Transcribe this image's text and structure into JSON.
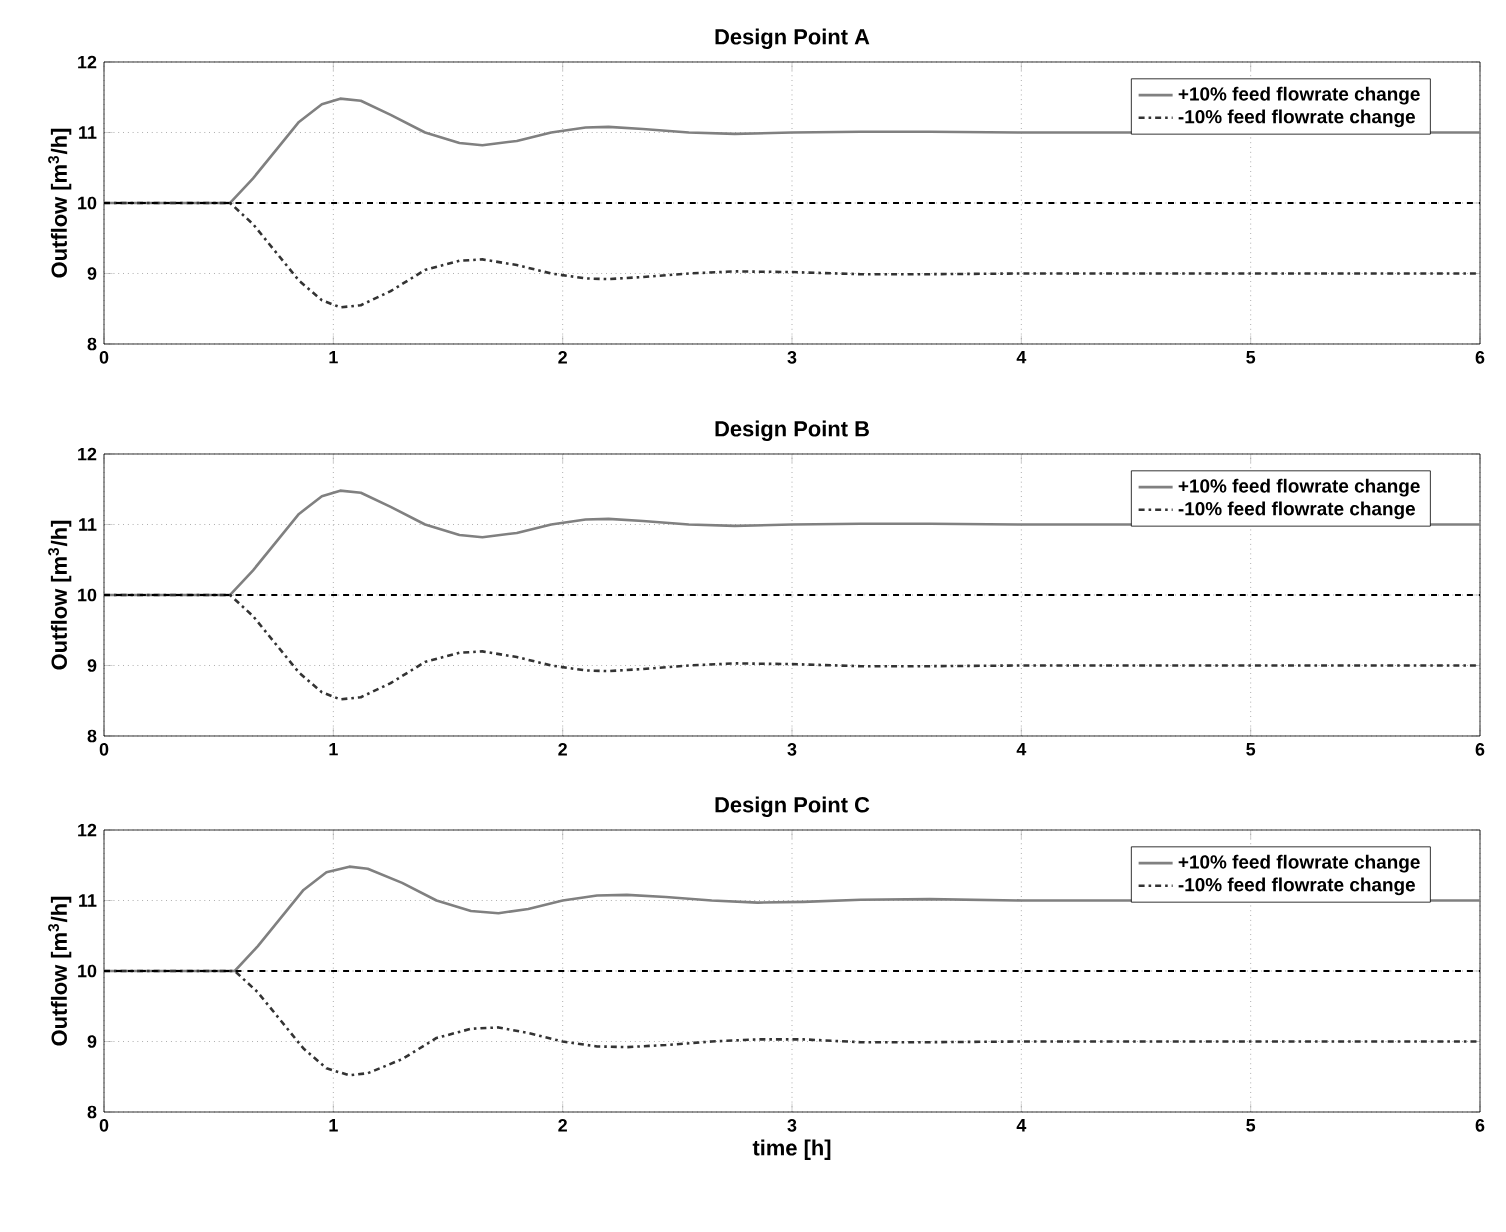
{
  "chart_data": [
    {
      "type": "line",
      "title": "Design Point A",
      "ylabel": "Outflow [m$^{3}$/h]",
      "xlim": [
        0,
        6
      ],
      "ylim": [
        8,
        12
      ],
      "xticks": [
        0,
        1,
        2,
        3,
        4,
        5,
        6
      ],
      "yticks": [
        8,
        9,
        10,
        11,
        12
      ],
      "grid": true,
      "legend": "top right",
      "ref_lines": [
        {
          "axis": "y",
          "value": 10,
          "color": "#000000",
          "line_style": "dashed"
        }
      ],
      "series": [
        {
          "name": "+10% feed flowrate change",
          "color": "#808080",
          "line_style": "solid",
          "x": [
            0,
            0.55,
            0.65,
            0.75,
            0.85,
            0.95,
            1.03,
            1.12,
            1.25,
            1.4,
            1.55,
            1.65,
            1.8,
            1.95,
            2.1,
            2.2,
            2.35,
            2.55,
            2.75,
            3.0,
            3.3,
            3.6,
            4.0,
            5.0,
            6.0
          ],
          "values": [
            10,
            10,
            10.35,
            10.75,
            11.15,
            11.4,
            11.48,
            11.45,
            11.25,
            11.0,
            10.85,
            10.82,
            10.88,
            11.0,
            11.07,
            11.08,
            11.05,
            11.0,
            10.98,
            11.0,
            11.01,
            11.01,
            11.0,
            11.0,
            11.0
          ]
        },
        {
          "name": "-10% feed flowrate change",
          "color": "#333333",
          "line_style": "dashdot",
          "x": [
            0,
            0.55,
            0.65,
            0.75,
            0.85,
            0.95,
            1.03,
            1.12,
            1.25,
            1.4,
            1.55,
            1.65,
            1.8,
            1.95,
            2.1,
            2.2,
            2.35,
            2.55,
            2.75,
            3.0,
            3.3,
            3.6,
            4.0,
            5.0,
            6.0
          ],
          "values": [
            10,
            10,
            9.7,
            9.3,
            8.9,
            8.62,
            8.52,
            8.55,
            8.75,
            9.05,
            9.18,
            9.2,
            9.12,
            9.0,
            8.93,
            8.92,
            8.95,
            9.0,
            9.03,
            9.02,
            8.99,
            8.99,
            9.0,
            9.0,
            9.0
          ]
        }
      ]
    },
    {
      "type": "line",
      "title": "Design Point B",
      "ylabel": "Outflow [m$^{3}$/h]",
      "xlim": [
        0,
        6
      ],
      "ylim": [
        8,
        12
      ],
      "xticks": [
        0,
        1,
        2,
        3,
        4,
        5,
        6
      ],
      "yticks": [
        8,
        9,
        10,
        11,
        12
      ],
      "grid": true,
      "legend": "top right",
      "ref_lines": [
        {
          "axis": "y",
          "value": 10,
          "color": "#000000",
          "line_style": "dashed"
        }
      ],
      "series": [
        {
          "name": "+10% feed flowrate change",
          "color": "#808080",
          "line_style": "solid",
          "x": [
            0,
            0.55,
            0.65,
            0.75,
            0.85,
            0.95,
            1.03,
            1.12,
            1.25,
            1.4,
            1.55,
            1.65,
            1.8,
            1.95,
            2.1,
            2.2,
            2.35,
            2.55,
            2.75,
            3.0,
            3.3,
            3.6,
            4.0,
            5.0,
            6.0
          ],
          "values": [
            10,
            10,
            10.35,
            10.75,
            11.15,
            11.4,
            11.48,
            11.45,
            11.25,
            11.0,
            10.85,
            10.82,
            10.88,
            11.0,
            11.07,
            11.08,
            11.05,
            11.0,
            10.98,
            11.0,
            11.01,
            11.01,
            11.0,
            11.0,
            11.0
          ]
        },
        {
          "name": "-10% feed flowrate change",
          "color": "#333333",
          "line_style": "dashdot",
          "x": [
            0,
            0.55,
            0.65,
            0.75,
            0.85,
            0.95,
            1.03,
            1.12,
            1.25,
            1.4,
            1.55,
            1.65,
            1.8,
            1.95,
            2.1,
            2.2,
            2.35,
            2.55,
            2.75,
            3.0,
            3.3,
            3.6,
            4.0,
            5.0,
            6.0
          ],
          "values": [
            10,
            10,
            9.7,
            9.3,
            8.9,
            8.62,
            8.52,
            8.55,
            8.75,
            9.05,
            9.18,
            9.2,
            9.12,
            9.0,
            8.93,
            8.92,
            8.95,
            9.0,
            9.03,
            9.02,
            8.99,
            8.99,
            9.0,
            9.0,
            9.0
          ]
        }
      ]
    },
    {
      "type": "line",
      "title": "Design Point C",
      "xlabel": "time [h]",
      "ylabel": "Outflow [m$^{3}$/h]",
      "xlim": [
        0,
        6
      ],
      "ylim": [
        8,
        12
      ],
      "xticks": [
        0,
        1,
        2,
        3,
        4,
        5,
        6
      ],
      "yticks": [
        8,
        9,
        10,
        11,
        12
      ],
      "grid": true,
      "legend": "top right",
      "ref_lines": [
        {
          "axis": "y",
          "value": 10,
          "color": "#000000",
          "line_style": "dashed"
        }
      ],
      "series": [
        {
          "name": "+10% feed flowrate change",
          "color": "#808080",
          "line_style": "solid",
          "x": [
            0,
            0.57,
            0.67,
            0.77,
            0.87,
            0.97,
            1.07,
            1.15,
            1.3,
            1.45,
            1.6,
            1.72,
            1.85,
            2.0,
            2.15,
            2.28,
            2.45,
            2.65,
            2.85,
            3.05,
            3.3,
            3.6,
            4.0,
            5.0,
            6.0
          ],
          "values": [
            10,
            10,
            10.35,
            10.75,
            11.15,
            11.4,
            11.48,
            11.45,
            11.25,
            11.0,
            10.85,
            10.82,
            10.88,
            11.0,
            11.07,
            11.08,
            11.05,
            11.0,
            10.97,
            10.98,
            11.01,
            11.02,
            11.0,
            11.0,
            11.0
          ]
        },
        {
          "name": "-10% feed flowrate change",
          "color": "#333333",
          "line_style": "dashdot",
          "x": [
            0,
            0.57,
            0.67,
            0.77,
            0.87,
            0.97,
            1.07,
            1.15,
            1.3,
            1.45,
            1.6,
            1.72,
            1.85,
            2.0,
            2.15,
            2.28,
            2.45,
            2.65,
            2.85,
            3.05,
            3.3,
            3.6,
            4.0,
            5.0,
            6.0
          ],
          "values": [
            10,
            10,
            9.7,
            9.3,
            8.9,
            8.62,
            8.52,
            8.55,
            8.75,
            9.05,
            9.18,
            9.2,
            9.12,
            9.0,
            8.93,
            8.92,
            8.95,
            9.0,
            9.03,
            9.03,
            8.99,
            8.99,
            9.0,
            9.0,
            9.0
          ]
        }
      ]
    }
  ]
}
